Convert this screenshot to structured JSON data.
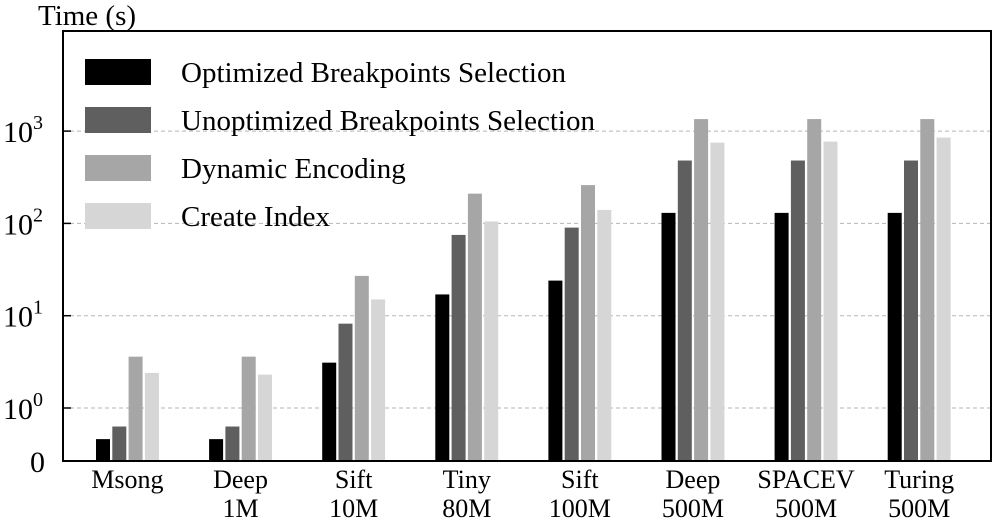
{
  "chart_data": {
    "type": "bar",
    "ylabel": "Time (s)",
    "yscale": "log",
    "ytick_labels": [
      {
        "value": 1,
        "base": "10",
        "exp": "0"
      },
      {
        "value": 10,
        "base": "10",
        "exp": "1"
      },
      {
        "value": 100,
        "base": "10",
        "exp": "2"
      },
      {
        "value": 1000,
        "base": "10",
        "exp": "3"
      }
    ],
    "origin_label": "0",
    "ylim": [
      0.4,
      5000
    ],
    "grid": "horizontal dashed",
    "legend_position": "top-left",
    "categories": [
      [
        "Msong"
      ],
      [
        "Deep",
        "1M"
      ],
      [
        "Sift",
        "10M"
      ],
      [
        "Tiny",
        "80M"
      ],
      [
        "Sift",
        "100M"
      ],
      [
        "Deep",
        "500M"
      ],
      [
        "SPACEV",
        "500M"
      ],
      [
        "Turing",
        "500M"
      ]
    ],
    "series": [
      {
        "name": "Optimized Breakpoints Selection",
        "color": "#000000",
        "values": [
          0.46,
          0.46,
          3.1,
          17,
          24,
          130,
          130,
          130
        ]
      },
      {
        "name": "Unoptimized Breakpoints Selection",
        "color": "#5f5f5f",
        "values": [
          0.63,
          0.63,
          8.2,
          75,
          90,
          480,
          480,
          480
        ]
      },
      {
        "name": "Dynamic Encoding",
        "color": "#a6a6a6",
        "values": [
          3.6,
          3.6,
          27,
          210,
          260,
          1350,
          1350,
          1350
        ]
      },
      {
        "name": "Create Index",
        "color": "#d6d6d6",
        "values": [
          2.4,
          2.3,
          15,
          105,
          140,
          750,
          770,
          850
        ]
      }
    ]
  }
}
